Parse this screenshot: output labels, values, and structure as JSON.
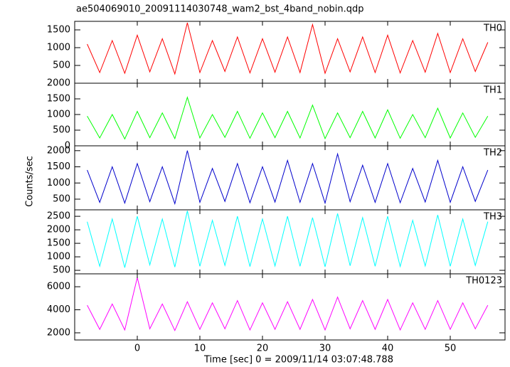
{
  "title": "ae504069010_20091114030748_wam2_bst_4band_nobin.qdp",
  "xlabel": "Time [sec] 0 = 2009/11/14 03:07:48.788",
  "ylabel": "Counts/sec",
  "xlim": [
    -10,
    58.75
  ],
  "xticks": [
    0,
    10,
    20,
    30,
    40,
    50
  ],
  "chart_data": [
    {
      "type": "line",
      "x": [
        -8,
        -6,
        -4,
        -2,
        0,
        2,
        4,
        6,
        8,
        10,
        12,
        14,
        16,
        18,
        20,
        22,
        24,
        26,
        28,
        30,
        32,
        34,
        36,
        38,
        40,
        42,
        44,
        46,
        48,
        50,
        52,
        54,
        56
      ],
      "series": [
        {
          "name": "TH0",
          "color": "#ff0000",
          "values": [
            1100,
            300,
            1200,
            280,
            1350,
            320,
            1250,
            260,
            1700,
            300,
            1200,
            330,
            1300,
            290,
            1250,
            310,
            1300,
            300,
            1650,
            280,
            1250,
            320,
            1300,
            300,
            1350,
            290,
            1200,
            310,
            1400,
            300,
            1250,
            330,
            1150
          ]
        }
      ],
      "ylim": [
        0,
        1740
      ],
      "yticks": [
        500,
        1000,
        1500
      ]
    },
    {
      "type": "line",
      "x": [
        -8,
        -6,
        -4,
        -2,
        0,
        2,
        4,
        6,
        8,
        10,
        12,
        14,
        16,
        18,
        20,
        22,
        24,
        26,
        28,
        30,
        32,
        34,
        36,
        38,
        40,
        42,
        44,
        46,
        48,
        50,
        52,
        54,
        56
      ],
      "series": [
        {
          "name": "TH1",
          "color": "#00ff00",
          "values": [
            950,
            250,
            1000,
            220,
            1100,
            260,
            1050,
            230,
            1550,
            250,
            1000,
            270,
            1100,
            240,
            1050,
            260,
            1100,
            250,
            1300,
            230,
            1050,
            260,
            1100,
            250,
            1150,
            240,
            1000,
            260,
            1200,
            250,
            1050,
            270,
            950
          ]
        }
      ],
      "ylim": [
        0,
        2000
      ],
      "yticks": [
        0,
        500,
        1000,
        1500,
        2000
      ]
    },
    {
      "type": "line",
      "x": [
        -8,
        -6,
        -4,
        -2,
        0,
        2,
        4,
        6,
        8,
        10,
        12,
        14,
        16,
        18,
        20,
        22,
        24,
        26,
        28,
        30,
        32,
        34,
        36,
        38,
        40,
        42,
        44,
        46,
        48,
        50,
        52,
        54,
        56
      ],
      "series": [
        {
          "name": "TH2",
          "color": "#0000cc",
          "values": [
            1400,
            400,
            1500,
            380,
            1600,
            420,
            1500,
            360,
            2000,
            400,
            1450,
            430,
            1600,
            390,
            1500,
            410,
            1700,
            400,
            1600,
            380,
            1900,
            420,
            1550,
            400,
            1600,
            390,
            1450,
            410,
            1700,
            400,
            1500,
            430,
            1400
          ]
        }
      ],
      "ylim": [
        170,
        2150
      ],
      "yticks": [
        500,
        1000,
        1500,
        2000
      ]
    },
    {
      "type": "line",
      "x": [
        -8,
        -6,
        -4,
        -2,
        0,
        2,
        4,
        6,
        8,
        10,
        12,
        14,
        16,
        18,
        20,
        22,
        24,
        26,
        28,
        30,
        32,
        34,
        36,
        38,
        40,
        42,
        44,
        46,
        48,
        50,
        52,
        54,
        56
      ],
      "series": [
        {
          "name": "TH3",
          "color": "#00ffff",
          "values": [
            2300,
            650,
            2400,
            600,
            2500,
            700,
            2400,
            620,
            2700,
            650,
            2350,
            680,
            2500,
            640,
            2400,
            660,
            2500,
            650,
            2450,
            630,
            2600,
            670,
            2450,
            650,
            2500,
            640,
            2350,
            660,
            2550,
            650,
            2400,
            680,
            2300
          ]
        }
      ],
      "ylim": [
        370,
        2740
      ],
      "yticks": [
        500,
        1000,
        1500,
        2000,
        2500
      ]
    },
    {
      "type": "line",
      "x": [
        -8,
        -6,
        -4,
        -2,
        0,
        2,
        4,
        6,
        8,
        10,
        12,
        14,
        16,
        18,
        20,
        22,
        24,
        26,
        28,
        30,
        32,
        34,
        36,
        38,
        40,
        42,
        44,
        46,
        48,
        50,
        52,
        54,
        56
      ],
      "series": [
        {
          "name": "TH0123",
          "color": "#ff00ff",
          "values": [
            4400,
            2300,
            4500,
            2250,
            6800,
            2350,
            4500,
            2200,
            4700,
            2300,
            4600,
            2350,
            4800,
            2250,
            4600,
            2300,
            4700,
            2300,
            4900,
            2250,
            5100,
            2350,
            4800,
            2300,
            4900,
            2250,
            4600,
            2300,
            4800,
            2300,
            4600,
            2350,
            4400
          ]
        }
      ],
      "ylim": [
        1380,
        7120
      ],
      "yticks": [
        2000,
        4000,
        6000
      ]
    }
  ]
}
